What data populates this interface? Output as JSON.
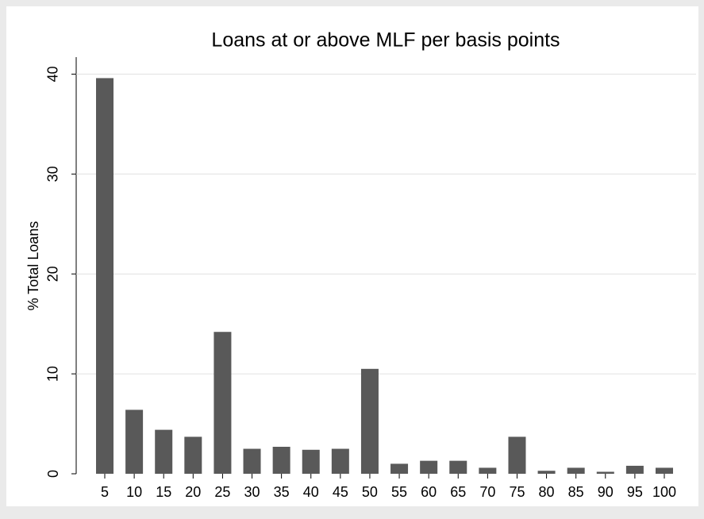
{
  "chart_data": {
    "type": "bar",
    "title": "Loans at or above MLF per basis points",
    "y_label": "% Total Loans",
    "categories": [
      "5",
      "10",
      "15",
      "20",
      "25",
      "30",
      "35",
      "40",
      "45",
      "50",
      "55",
      "60",
      "65",
      "70",
      "75",
      "80",
      "85",
      "90",
      "95",
      "100"
    ],
    "values": [
      39.6,
      6.4,
      4.4,
      3.7,
      14.2,
      2.5,
      2.7,
      2.4,
      2.5,
      10.5,
      1.0,
      1.3,
      1.3,
      0.6,
      3.7,
      0.3,
      0.6,
      0.2,
      0.8,
      0.6
    ],
    "color": "#595959",
    "ylim": [
      0,
      41.7
    ],
    "yticks": [
      0,
      10,
      20,
      30,
      40
    ],
    "grid": true
  }
}
